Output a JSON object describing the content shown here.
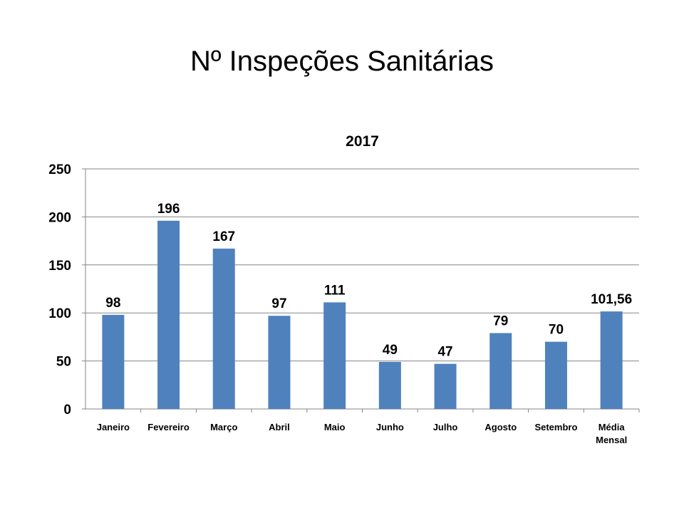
{
  "page_title": "Nº Inspeções Sanitárias",
  "chart_data": {
    "type": "bar",
    "title": "2017",
    "xlabel": "",
    "ylabel": "",
    "categories": [
      "Janeiro",
      "Fevereiro",
      "Março",
      "Abril",
      "Maio",
      "Junho",
      "Julho",
      "Agosto",
      "Setembro",
      "Média Mensal"
    ],
    "values": [
      98,
      196,
      167,
      97,
      111,
      49,
      47,
      79,
      70,
      101.56
    ],
    "data_labels": [
      "98",
      "196",
      "167",
      "97",
      "111",
      "49",
      "47",
      "79",
      "70",
      "101,56"
    ],
    "ylim": [
      0,
      250
    ],
    "yticks": [
      0,
      50,
      100,
      150,
      200,
      250
    ],
    "grid": true,
    "legend": "none",
    "bar_color": "#4F81BD"
  }
}
